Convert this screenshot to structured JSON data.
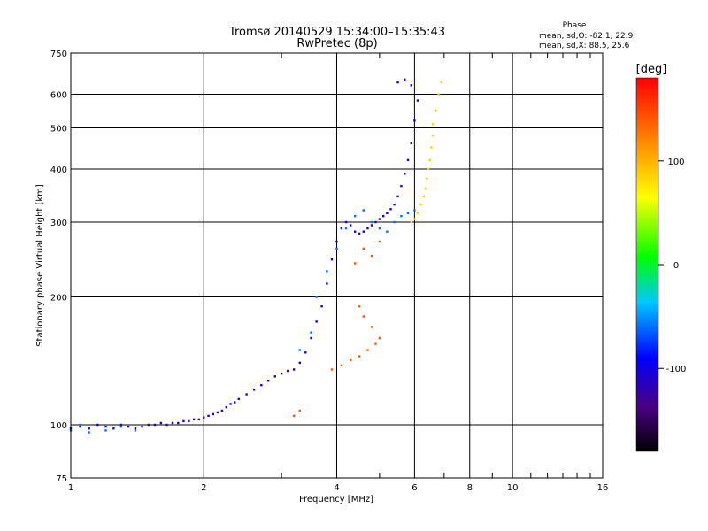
{
  "chart_data": {
    "type": "scatter",
    "title": "Tromsø 20140529 15:34:00–15:35:43",
    "subtitle": "RwPretec (8p)",
    "xlabel": "Frequency [MHz]",
    "ylabel": "Stationary phase Virtual Height [km]",
    "x_scale": "log",
    "y_scale": "log",
    "xlim": [
      1,
      16
    ],
    "ylim": [
      75,
      750
    ],
    "x_ticks": [
      1,
      2,
      4,
      6,
      8,
      10,
      16
    ],
    "x_tick_labels": [
      "1",
      "2",
      "4",
      "6",
      "8",
      "10",
      "16"
    ],
    "y_ticks": [
      75,
      100,
      200,
      300,
      400,
      500,
      600,
      750
    ],
    "y_tick_labels": [
      "75",
      "100",
      "200",
      "300",
      "400",
      "500",
      "600",
      "750"
    ],
    "grid": true,
    "phase_stats": {
      "heading": "Phase",
      "o_line": "mean, sd,O: -82.1, 22.9",
      "x_line": "mean, sd,X: 88.5, 25.6"
    },
    "colorbar": {
      "label": "[deg]",
      "range": [
        -180,
        180
      ],
      "ticks": [
        100,
        0,
        -100
      ],
      "tick_labels": [
        "100",
        "0",
        "-100"
      ]
    },
    "series": [
      {
        "trace": "low-F-region-blue",
        "phase_deg": -110,
        "points": [
          [
            1.0,
            98
          ],
          [
            1.05,
            99
          ],
          [
            1.1,
            98
          ],
          [
            1.15,
            100
          ],
          [
            1.2,
            99
          ],
          [
            1.25,
            98
          ],
          [
            1.3,
            100
          ],
          [
            1.35,
            99
          ],
          [
            1.4,
            98
          ],
          [
            1.45,
            99
          ],
          [
            1.5,
            100
          ],
          [
            1.55,
            100
          ],
          [
            1.6,
            101
          ],
          [
            1.65,
            100
          ],
          [
            1.7,
            101
          ],
          [
            1.75,
            101
          ],
          [
            1.8,
            102
          ],
          [
            1.85,
            102
          ],
          [
            1.9,
            103
          ],
          [
            1.95,
            103
          ],
          [
            2.0,
            104
          ],
          [
            2.05,
            105
          ],
          [
            2.1,
            106
          ],
          [
            2.15,
            107
          ],
          [
            2.2,
            108
          ],
          [
            2.25,
            110
          ],
          [
            2.3,
            112
          ],
          [
            2.35,
            113
          ],
          [
            2.4,
            115
          ],
          [
            2.5,
            118
          ],
          [
            2.6,
            121
          ],
          [
            2.7,
            124
          ],
          [
            2.8,
            127
          ],
          [
            2.9,
            130
          ],
          [
            3.0,
            132
          ],
          [
            3.1,
            134
          ],
          [
            3.2,
            135
          ],
          [
            3.3,
            140
          ],
          [
            3.4,
            148
          ],
          [
            3.5,
            160
          ],
          [
            3.6,
            175
          ],
          [
            3.7,
            190
          ],
          [
            3.8,
            215
          ],
          [
            3.9,
            245
          ],
          [
            4.0,
            270
          ],
          [
            4.1,
            290
          ],
          [
            4.2,
            300
          ],
          [
            4.3,
            295
          ],
          [
            4.4,
            285
          ],
          [
            4.5,
            282
          ],
          [
            4.6,
            285
          ],
          [
            4.7,
            290
          ],
          [
            4.8,
            295
          ],
          [
            4.9,
            300
          ],
          [
            5.0,
            305
          ],
          [
            5.1,
            310
          ],
          [
            5.2,
            315
          ],
          [
            5.3,
            322
          ],
          [
            5.4,
            330
          ],
          [
            5.5,
            345
          ],
          [
            5.6,
            365
          ],
          [
            5.7,
            390
          ],
          [
            5.8,
            420
          ],
          [
            5.9,
            460
          ],
          [
            6.0,
            520
          ],
          [
            6.1,
            580
          ],
          [
            5.9,
            630
          ],
          [
            5.7,
            650
          ],
          [
            5.5,
            640
          ]
        ]
      },
      {
        "trace": "cyan-band",
        "phase_deg": -60,
        "points": [
          [
            1.0,
            97
          ],
          [
            1.05,
            100
          ],
          [
            1.1,
            96
          ],
          [
            1.2,
            97
          ],
          [
            1.3,
            99
          ],
          [
            1.4,
            97
          ],
          [
            3.3,
            150
          ],
          [
            3.5,
            165
          ],
          [
            3.6,
            200
          ],
          [
            3.8,
            230
          ],
          [
            4.0,
            260
          ],
          [
            4.2,
            290
          ],
          [
            4.4,
            310
          ],
          [
            4.6,
            320
          ],
          [
            4.8,
            300
          ],
          [
            5.0,
            290
          ],
          [
            5.2,
            285
          ],
          [
            5.4,
            300
          ],
          [
            5.6,
            310
          ],
          [
            5.8,
            315
          ],
          [
            6.0,
            320
          ]
        ]
      },
      {
        "trace": "X-mode-green-yellow",
        "phase_deg": 85,
        "points": [
          [
            5.9,
            300
          ],
          [
            6.0,
            305
          ],
          [
            6.1,
            315
          ],
          [
            6.2,
            330
          ],
          [
            6.3,
            345
          ],
          [
            6.35,
            360
          ],
          [
            6.4,
            380
          ],
          [
            6.45,
            400
          ],
          [
            6.5,
            420
          ],
          [
            6.55,
            450
          ],
          [
            6.6,
            480
          ],
          [
            6.6,
            510
          ],
          [
            6.7,
            550
          ],
          [
            6.8,
            600
          ],
          [
            6.9,
            640
          ]
        ]
      },
      {
        "trace": "orange-lower-X",
        "phase_deg": 140,
        "points": [
          [
            3.9,
            135
          ],
          [
            4.1,
            138
          ],
          [
            4.3,
            142
          ],
          [
            4.5,
            145
          ],
          [
            4.7,
            150
          ],
          [
            4.9,
            155
          ],
          [
            5.0,
            160
          ],
          [
            4.8,
            170
          ],
          [
            4.6,
            180
          ],
          [
            4.5,
            190
          ],
          [
            3.2,
            105
          ],
          [
            3.3,
            108
          ],
          [
            4.4,
            240
          ],
          [
            4.6,
            260
          ],
          [
            4.8,
            250
          ],
          [
            5.0,
            270
          ]
        ]
      }
    ]
  }
}
